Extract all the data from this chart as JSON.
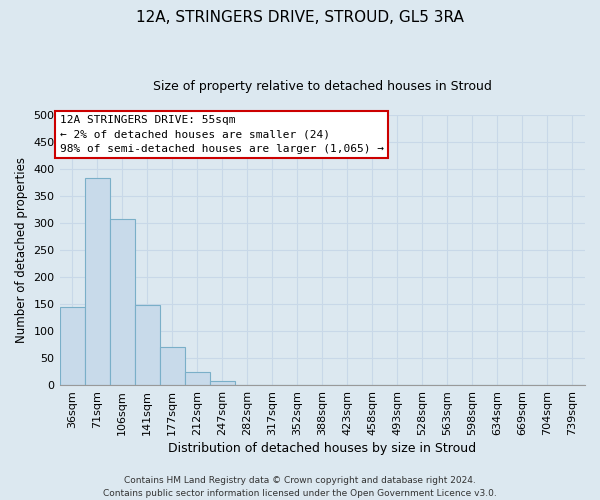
{
  "title": "12A, STRINGERS DRIVE, STROUD, GL5 3RA",
  "subtitle": "Size of property relative to detached houses in Stroud",
  "xlabel": "Distribution of detached houses by size in Stroud",
  "ylabel": "Number of detached properties",
  "bin_labels": [
    "36sqm",
    "71sqm",
    "106sqm",
    "141sqm",
    "177sqm",
    "212sqm",
    "247sqm",
    "282sqm",
    "317sqm",
    "352sqm",
    "388sqm",
    "423sqm",
    "458sqm",
    "493sqm",
    "528sqm",
    "563sqm",
    "598sqm",
    "634sqm",
    "669sqm",
    "704sqm",
    "739sqm"
  ],
  "bar_heights": [
    144,
    383,
    308,
    149,
    70,
    24,
    8,
    0,
    0,
    0,
    0,
    0,
    0,
    0,
    0,
    0,
    0,
    0,
    0,
    0,
    0
  ],
  "bar_color": "#c8daea",
  "bar_edge_color": "#7aafc8",
  "ylim": [
    0,
    500
  ],
  "yticks": [
    0,
    50,
    100,
    150,
    200,
    250,
    300,
    350,
    400,
    450,
    500
  ],
  "annotation_title": "12A STRINGERS DRIVE: 55sqm",
  "annotation_line1": "← 2% of detached houses are smaller (24)",
  "annotation_line2": "98% of semi-detached houses are larger (1,065) →",
  "annotation_box_color": "#ffffff",
  "annotation_box_edge": "#cc0000",
  "grid_color": "#c8d8e8",
  "background_color": "#dce8f0",
  "footer_line1": "Contains HM Land Registry data © Crown copyright and database right 2024.",
  "footer_line2": "Contains public sector information licensed under the Open Government Licence v3.0.",
  "title_fontsize": 11,
  "subtitle_fontsize": 9,
  "ylabel_fontsize": 8.5,
  "xlabel_fontsize": 9,
  "tick_fontsize": 8,
  "annot_fontsize": 8,
  "footer_fontsize": 6.5
}
